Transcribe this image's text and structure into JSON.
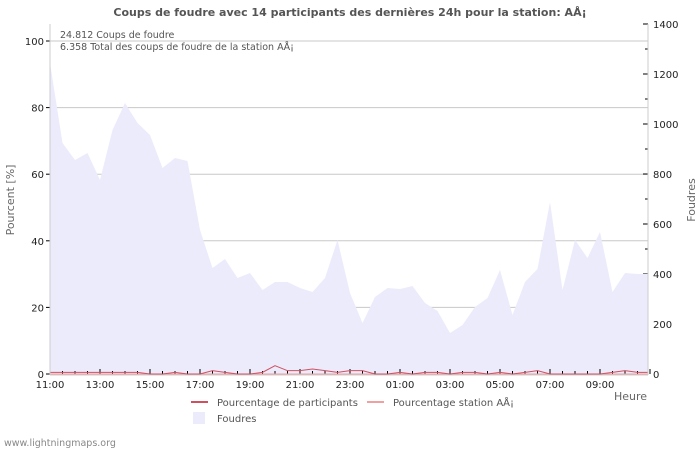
{
  "title": "Coups de foudre avec 14 participants des dernières 24h pour la station: AÅ¡",
  "info": {
    "line1": "24.812  Coups de foudre",
    "line2": "6.358 Total des coups de foudre de la station AÅ¡"
  },
  "footer": "www.lightningmaps.org",
  "colors": {
    "area": "#ebebfb",
    "participants_line": "#d05060",
    "station_line": "#f0a0a0",
    "grid": "#c8c8c8",
    "axis": "#cccccc"
  },
  "chart_data": {
    "type": "area",
    "title": "Coups de foudre avec 14 participants des dernières 24h pour la station: AÅ¡",
    "xlabel": "Heure",
    "ylabel_left": "Pourcent   [%]",
    "ylabel_right": "Foudres",
    "ylim_left": [
      0,
      100
    ],
    "ylim_right": [
      0,
      1400
    ],
    "yticks_left": [
      "0",
      "20",
      "40",
      "60",
      "80",
      "100"
    ],
    "yticks_right": [
      "0",
      "200",
      "400",
      "600",
      "800",
      "1000",
      "1200",
      "1400"
    ],
    "x_tick_labels": [
      "11:00",
      "13:00",
      "15:00",
      "17:00",
      "19:00",
      "21:00",
      "23:00",
      "01:00",
      "03:00",
      "05:00",
      "07:00",
      "09:00"
    ],
    "grid": true,
    "legend_position": "bottom",
    "x": [
      "11:00",
      "11:30",
      "12:00",
      "12:30",
      "13:00",
      "13:30",
      "14:00",
      "14:30",
      "15:00",
      "15:30",
      "16:00",
      "16:30",
      "17:00",
      "17:30",
      "18:00",
      "18:30",
      "19:00",
      "19:30",
      "20:00",
      "20:30",
      "21:00",
      "21:30",
      "22:00",
      "22:30",
      "23:00",
      "23:30",
      "00:00",
      "00:30",
      "01:00",
      "01:30",
      "02:00",
      "02:30",
      "03:00",
      "03:30",
      "04:00",
      "04:30",
      "05:00",
      "05:30",
      "06:00",
      "06:30",
      "07:00",
      "07:30",
      "08:00",
      "08:30",
      "09:00",
      "09:30",
      "10:00",
      "10:30"
    ],
    "series": [
      {
        "name": "Foudres",
        "axis": "right",
        "type": "area",
        "values": [
          1244,
          924,
          856,
          884,
          776,
          976,
          1084,
          1004,
          956,
          824,
          864,
          852,
          576,
          424,
          460,
          384,
          404,
          336,
          368,
          368,
          344,
          328,
          384,
          536,
          324,
          204,
          308,
          344,
          340,
          352,
          284,
          252,
          164,
          196,
          268,
          304,
          416,
          236,
          368,
          420,
          688,
          336,
          536,
          464,
          568,
          328,
          404,
          400
        ]
      },
      {
        "name": "Pourcentage de participants",
        "axis": "left",
        "type": "line",
        "values": [
          0.5,
          0.5,
          0.5,
          0.5,
          0.5,
          0.5,
          0.5,
          0.5,
          0,
          0,
          0.5,
          0,
          0,
          1,
          0.5,
          0,
          0,
          0.5,
          2.5,
          1,
          1,
          1.5,
          1,
          0.5,
          1,
          1,
          0,
          0,
          0.5,
          0,
          0.5,
          0.5,
          0,
          0.5,
          0.5,
          0,
          0.5,
          0,
          0.5,
          1,
          0,
          0,
          0,
          0,
          0,
          0.5,
          1,
          0.5
        ]
      },
      {
        "name": "Pourcentage station AÅ¡",
        "axis": "left",
        "type": "line",
        "values": [
          0,
          0,
          0,
          0,
          0,
          0,
          0,
          0,
          0,
          0,
          0,
          0,
          0,
          0,
          0,
          0,
          0,
          0,
          0,
          0,
          0,
          0,
          0,
          0,
          0,
          0,
          0,
          0,
          0,
          0,
          0,
          0,
          0,
          0,
          0,
          0,
          0,
          0,
          0,
          0,
          0,
          0,
          0,
          0,
          0,
          0,
          0,
          0
        ]
      }
    ]
  },
  "legend": {
    "participants": "Pourcentage de participants",
    "station": "Pourcentage station AÅ¡",
    "foudres": "Foudres"
  },
  "axes": {
    "xlabel": "Heure",
    "ylabel_left": "Pourcent   [%]",
    "ylabel_right": "Foudres"
  }
}
